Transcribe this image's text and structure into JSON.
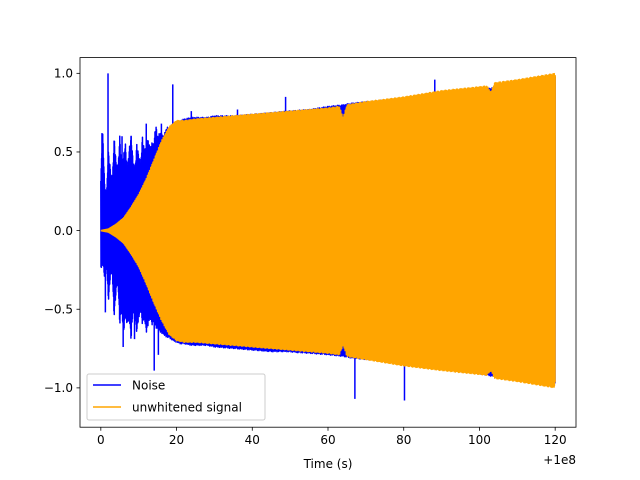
{
  "chart_data": {
    "type": "line",
    "title": "",
    "xlabel": "Time (s)",
    "ylabel": "",
    "x_offset_label": "+1e8",
    "xlim": [
      -5.5,
      125.5
    ],
    "ylim": [
      -1.25,
      1.1
    ],
    "x_ticks": [
      0,
      20,
      40,
      60,
      80,
      100,
      120
    ],
    "x_tick_labels": [
      "0",
      "20",
      "40",
      "60",
      "80",
      "100",
      "120"
    ],
    "y_ticks": [
      -1.0,
      -0.5,
      0.0,
      0.5,
      1.0
    ],
    "y_tick_labels": [
      "−1.0",
      "−0.5",
      "0.0",
      "0.5",
      "1.0"
    ],
    "grid": false,
    "legend_position": "lower left",
    "series": [
      {
        "name": "Noise",
        "color": "#0000ff",
        "kind": "dense-oscillation",
        "envelope_upper": {
          "x": [
            0,
            0.5,
            1,
            1.5,
            2,
            2.5,
            3,
            3.5,
            4,
            4.5,
            5,
            5.5,
            6,
            6.5,
            7,
            7.5,
            8,
            8.5,
            9,
            9.5,
            10,
            10.5,
            11,
            11.5,
            12,
            12.5,
            13,
            13.5,
            14,
            14.5,
            15,
            15.5,
            16,
            16.5,
            17,
            17.5,
            18,
            18.5,
            19,
            20,
            21,
            22,
            24,
            26,
            28,
            30,
            35,
            40,
            45,
            49,
            55,
            60,
            64,
            66,
            70,
            75,
            80,
            84,
            88,
            92,
            96,
            100,
            104,
            108,
            112,
            116,
            120
          ],
          "y": [
            0.35,
            0.62,
            0.3,
            0.22,
            0.5,
            0.4,
            0.3,
            0.57,
            0.45,
            0.38,
            0.6,
            0.42,
            0.48,
            0.55,
            0.38,
            0.52,
            0.6,
            0.45,
            0.38,
            0.55,
            0.48,
            0.42,
            0.6,
            0.5,
            0.55,
            0.58,
            0.52,
            0.56,
            0.55,
            0.68,
            0.6,
            0.62,
            0.62,
            0.6,
            0.63,
            0.66,
            0.65,
            0.67,
            0.68,
            0.69,
            0.7,
            0.71,
            0.72,
            0.72,
            0.72,
            0.73,
            0.73,
            0.74,
            0.75,
            0.76,
            0.77,
            0.79,
            0.8,
            0.81,
            0.82,
            0.83,
            0.84,
            0.86,
            0.87,
            0.88,
            0.89,
            0.9,
            0.91,
            0.93,
            0.95,
            0.97,
            0.98
          ]
        },
        "envelope_lower": {
          "x": [
            0,
            0.5,
            1,
            1.5,
            2,
            2.5,
            3,
            3.5,
            4,
            4.5,
            5,
            5.5,
            6,
            6.5,
            7,
            7.5,
            8,
            8.5,
            9,
            9.5,
            10,
            10.5,
            11,
            11.5,
            12,
            12.5,
            13,
            13.5,
            14,
            14.5,
            15,
            15.5,
            16,
            16.5,
            17,
            17.5,
            18,
            18.5,
            19,
            20,
            21,
            22,
            24,
            26,
            28,
            30,
            35,
            40,
            45,
            49,
            55,
            60,
            64,
            66,
            70,
            75,
            80,
            84,
            88,
            92,
            96,
            100,
            104,
            108,
            112,
            116,
            120
          ],
          "y": [
            -0.25,
            -0.2,
            -0.3,
            -0.2,
            -0.45,
            -0.3,
            -0.25,
            -0.55,
            -0.4,
            -0.3,
            -0.6,
            -0.5,
            -0.65,
            -0.55,
            -0.6,
            -0.55,
            -0.7,
            -0.5,
            -0.55,
            -0.65,
            -0.55,
            -0.5,
            -0.6,
            -0.55,
            -0.65,
            -0.6,
            -0.55,
            -0.6,
            -0.58,
            -0.62,
            -0.62,
            -0.64,
            -0.65,
            -0.66,
            -0.67,
            -0.68,
            -0.68,
            -0.69,
            -0.7,
            -0.71,
            -0.72,
            -0.72,
            -0.73,
            -0.73,
            -0.73,
            -0.74,
            -0.75,
            -0.76,
            -0.77,
            -0.77,
            -0.78,
            -0.79,
            -0.8,
            -0.81,
            -0.82,
            -0.83,
            -0.84,
            -0.86,
            -0.87,
            -0.88,
            -0.9,
            -0.91,
            -0.93,
            -0.94,
            -0.96,
            -0.97,
            -0.98
          ]
        },
        "spikes": [
          {
            "x": 0.3,
            "y": 0.62
          },
          {
            "x": 0.9,
            "y": 0.27
          },
          {
            "x": 1.2,
            "y": -0.52
          },
          {
            "x": 1.9,
            "y": 1.0
          },
          {
            "x": 3.6,
            "y": 0.57
          },
          {
            "x": 5.6,
            "y": 0.6
          },
          {
            "x": 5.9,
            "y": -0.74
          },
          {
            "x": 7.2,
            "y": -0.55
          },
          {
            "x": 8.0,
            "y": 0.6
          },
          {
            "x": 8.9,
            "y": -0.69
          },
          {
            "x": 10.1,
            "y": -0.55
          },
          {
            "x": 12.0,
            "y": 0.68
          },
          {
            "x": 14.1,
            "y": -0.89
          },
          {
            "x": 15.2,
            "y": -0.79
          },
          {
            "x": 16.0,
            "y": 0.68
          },
          {
            "x": 19.0,
            "y": 0.93
          },
          {
            "x": 23.9,
            "y": 0.76
          },
          {
            "x": 36.1,
            "y": 0.77
          },
          {
            "x": 48.8,
            "y": 0.85
          },
          {
            "x": 52.0,
            "y": -0.78
          },
          {
            "x": 67.1,
            "y": -1.07
          },
          {
            "x": 80.2,
            "y": -1.08
          },
          {
            "x": 88.2,
            "y": 0.96
          }
        ]
      },
      {
        "name": "unwhitened signal",
        "color": "#ffa500",
        "kind": "dense-oscillation",
        "envelope_upper": {
          "x": [
            0,
            2,
            4,
            6,
            8,
            10,
            12,
            14,
            16,
            18,
            20,
            22,
            25,
            30,
            40,
            50,
            60,
            63,
            64,
            65,
            70,
            80,
            90,
            102,
            103,
            104,
            110,
            120
          ],
          "y": [
            0.0,
            0.01,
            0.04,
            0.08,
            0.15,
            0.23,
            0.33,
            0.45,
            0.57,
            0.66,
            0.7,
            0.7,
            0.71,
            0.72,
            0.74,
            0.76,
            0.78,
            0.79,
            0.72,
            0.8,
            0.82,
            0.85,
            0.89,
            0.92,
            0.88,
            0.94,
            0.96,
            1.0
          ]
        },
        "envelope_lower": {
          "x": [
            0,
            2,
            4,
            6,
            8,
            10,
            12,
            14,
            16,
            18,
            20,
            22,
            25,
            30,
            40,
            50,
            60,
            63,
            64,
            65,
            70,
            80,
            90,
            102,
            103,
            104,
            110,
            120
          ],
          "y": [
            0.0,
            -0.01,
            -0.04,
            -0.08,
            -0.15,
            -0.23,
            -0.34,
            -0.46,
            -0.57,
            -0.66,
            -0.7,
            -0.71,
            -0.71,
            -0.72,
            -0.74,
            -0.76,
            -0.78,
            -0.79,
            -0.73,
            -0.8,
            -0.82,
            -0.86,
            -0.89,
            -0.92,
            -0.89,
            -0.94,
            -0.96,
            -1.0
          ]
        }
      }
    ]
  }
}
